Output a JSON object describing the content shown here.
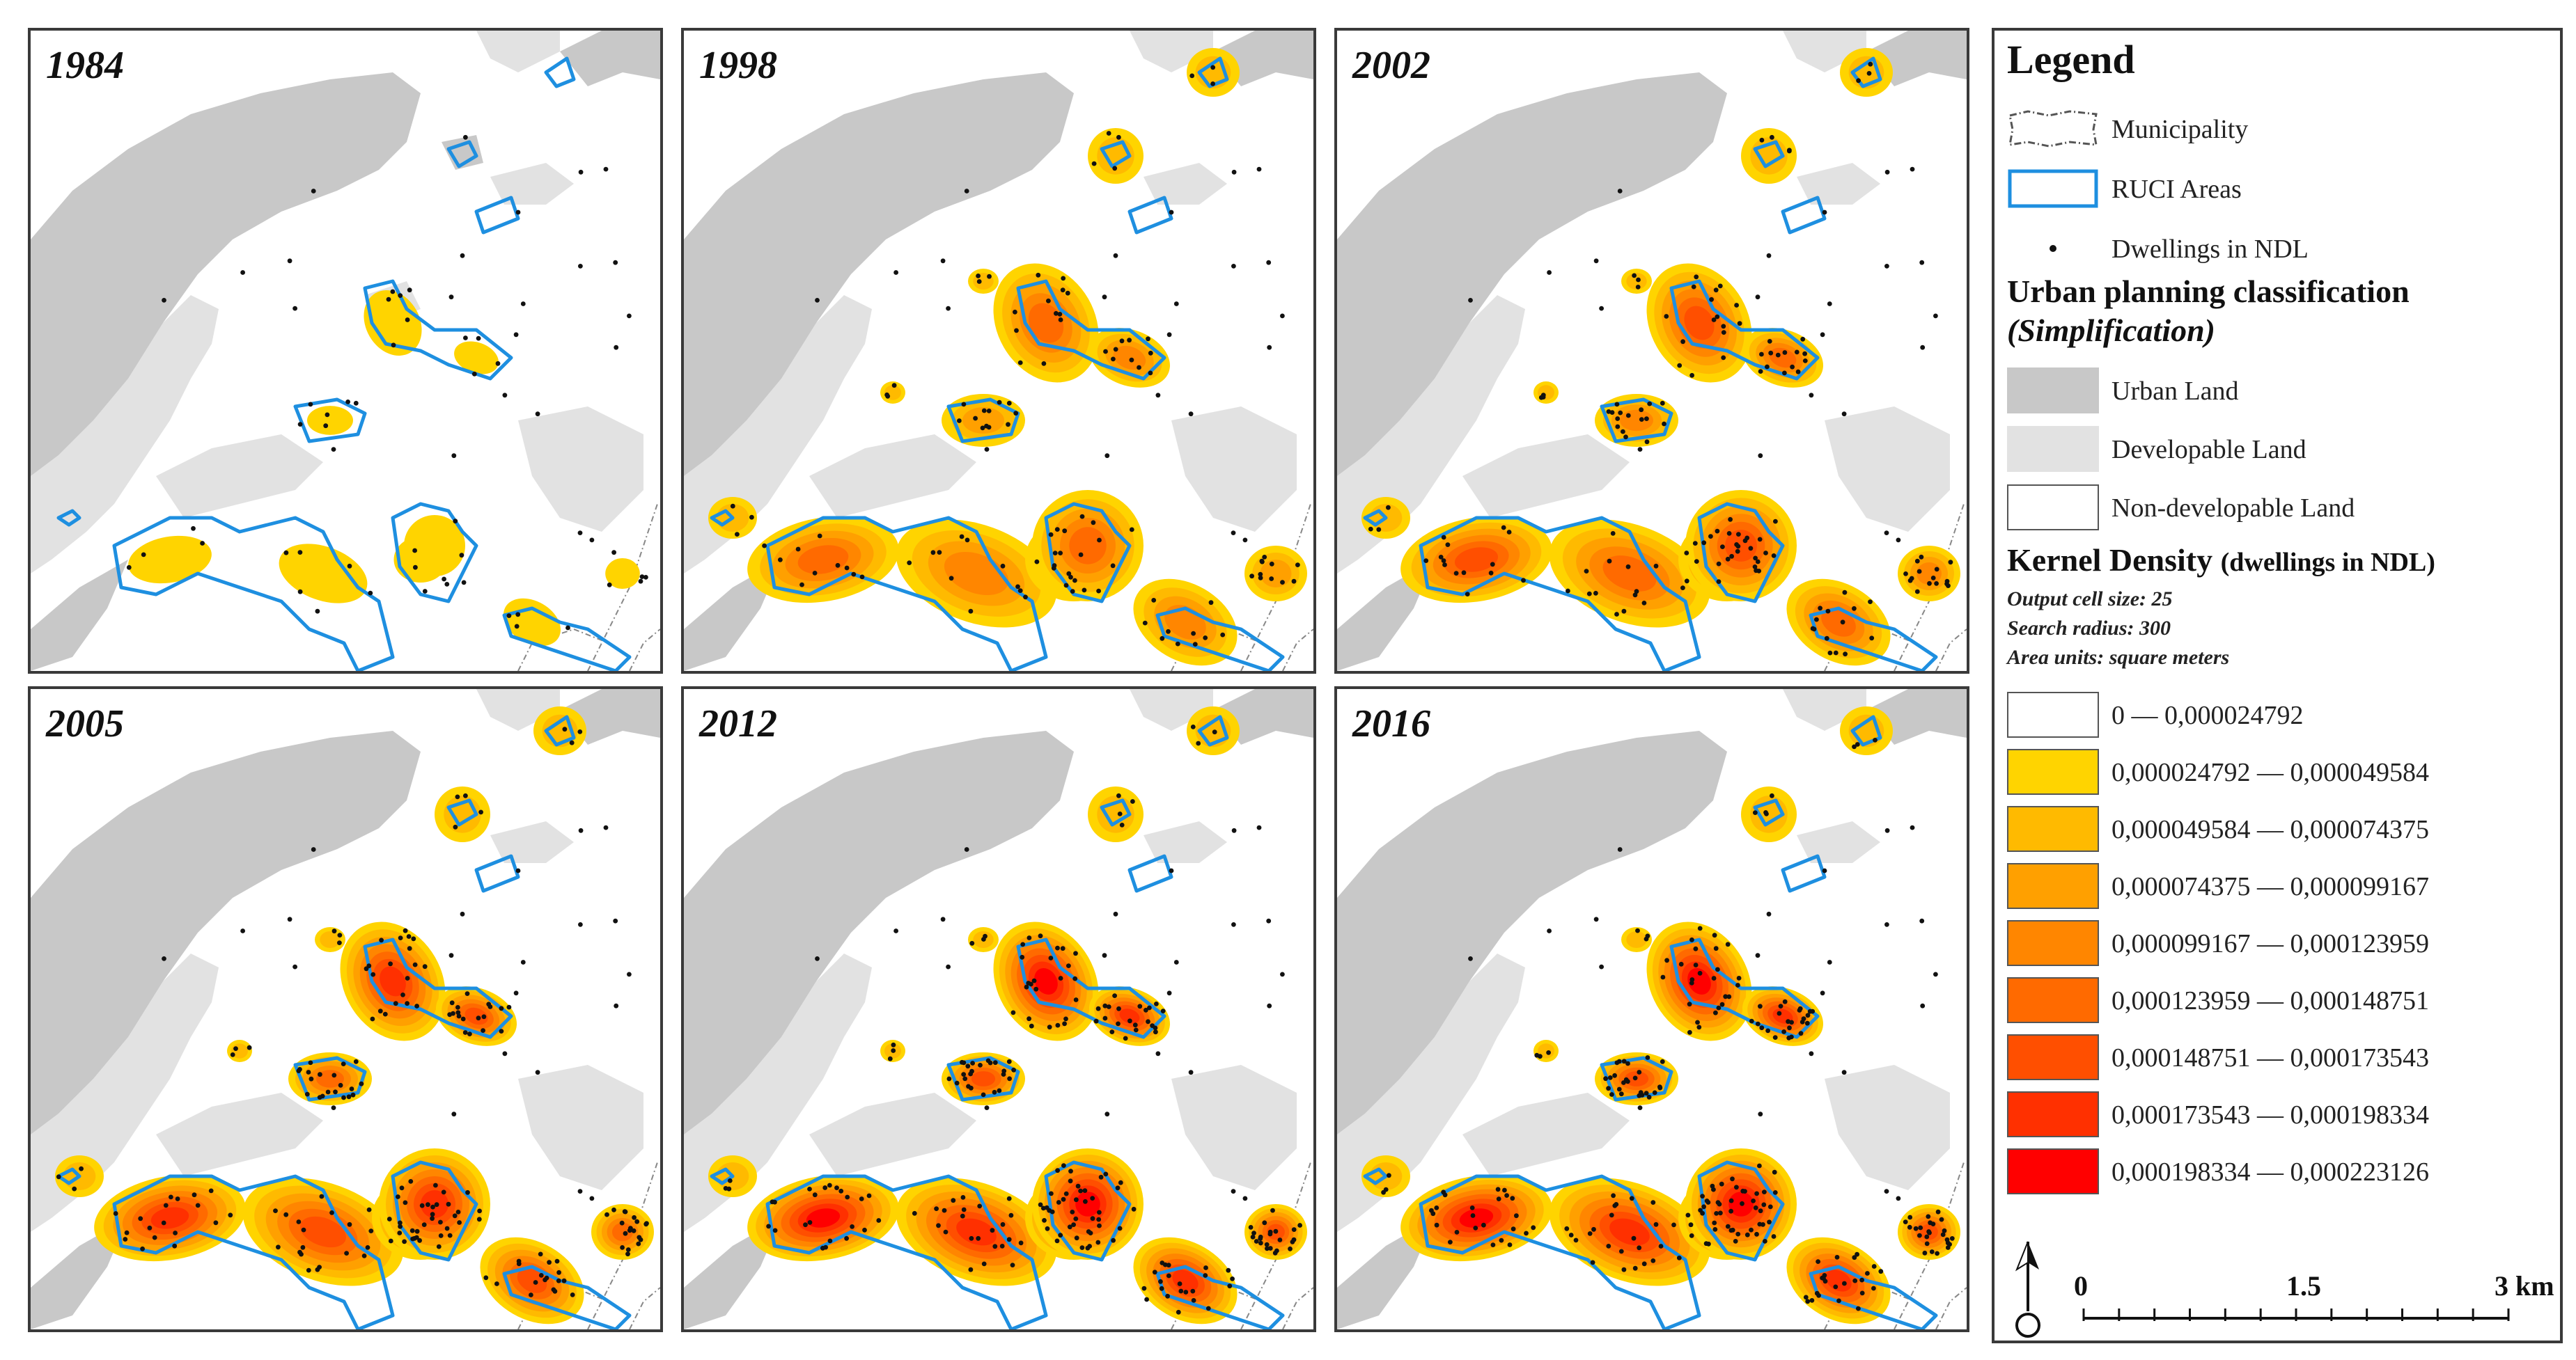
{
  "panels": [
    {
      "year": "1984",
      "stage": 0
    },
    {
      "year": "1998",
      "stage": 1
    },
    {
      "year": "2002",
      "stage": 2
    },
    {
      "year": "2005",
      "stage": 3
    },
    {
      "year": "2012",
      "stage": 4
    },
    {
      "year": "2016",
      "stage": 5
    }
  ],
  "legend": {
    "title": "Legend",
    "items": {
      "municipality": "Municipality",
      "ruci": "RUCI Areas",
      "dwellings": "Dwellings in NDL"
    },
    "urban_heading": "Urban planning classification",
    "urban_subheading": "(Simplification)",
    "urban_classes": [
      {
        "label": "Urban Land",
        "color": "#c8c8c8"
      },
      {
        "label": "Developable Land",
        "color": "#e2e2e2"
      },
      {
        "label": "Non-developable Land",
        "color": "#ffffff"
      }
    ],
    "kernel_heading_main": "Kernel Density",
    "kernel_heading_sub": "(dwellings in NDL)",
    "params": [
      "Output cell size: 25",
      "Search radius: 300",
      "Area units: square meters"
    ],
    "density_classes": [
      {
        "label": "0 — 0,000024792",
        "color": "#ffffff"
      },
      {
        "label": "0,000024792 — 0,000049584",
        "color": "#ffd400"
      },
      {
        "label": "0,000049584 — 0,000074375",
        "color": "#ffba00"
      },
      {
        "label": "0,000074375 — 0,000099167",
        "color": "#ffa000"
      },
      {
        "label": "0,000099167 — 0,000123959",
        "color": "#ff8600"
      },
      {
        "label": "0,000123959 — 0,000148751",
        "color": "#ff6a00"
      },
      {
        "label": "0,000148751 — 0,000173543",
        "color": "#ff4f00"
      },
      {
        "label": "0,000173543 — 0,000198334",
        "color": "#ff3000"
      },
      {
        "label": "0,000198334 — 0,000223126",
        "color": "#ff0000"
      }
    ],
    "scale": {
      "labels": [
        "0",
        "1.5",
        "3 km"
      ],
      "values": [
        0,
        1.5,
        3
      ]
    }
  },
  "colors": {
    "urban": "#c8c8c8",
    "developable": "#e2e2e2",
    "ruci_outline": "#1e8fe0",
    "dwelling": "#111111",
    "border": "#3a3a3a"
  }
}
